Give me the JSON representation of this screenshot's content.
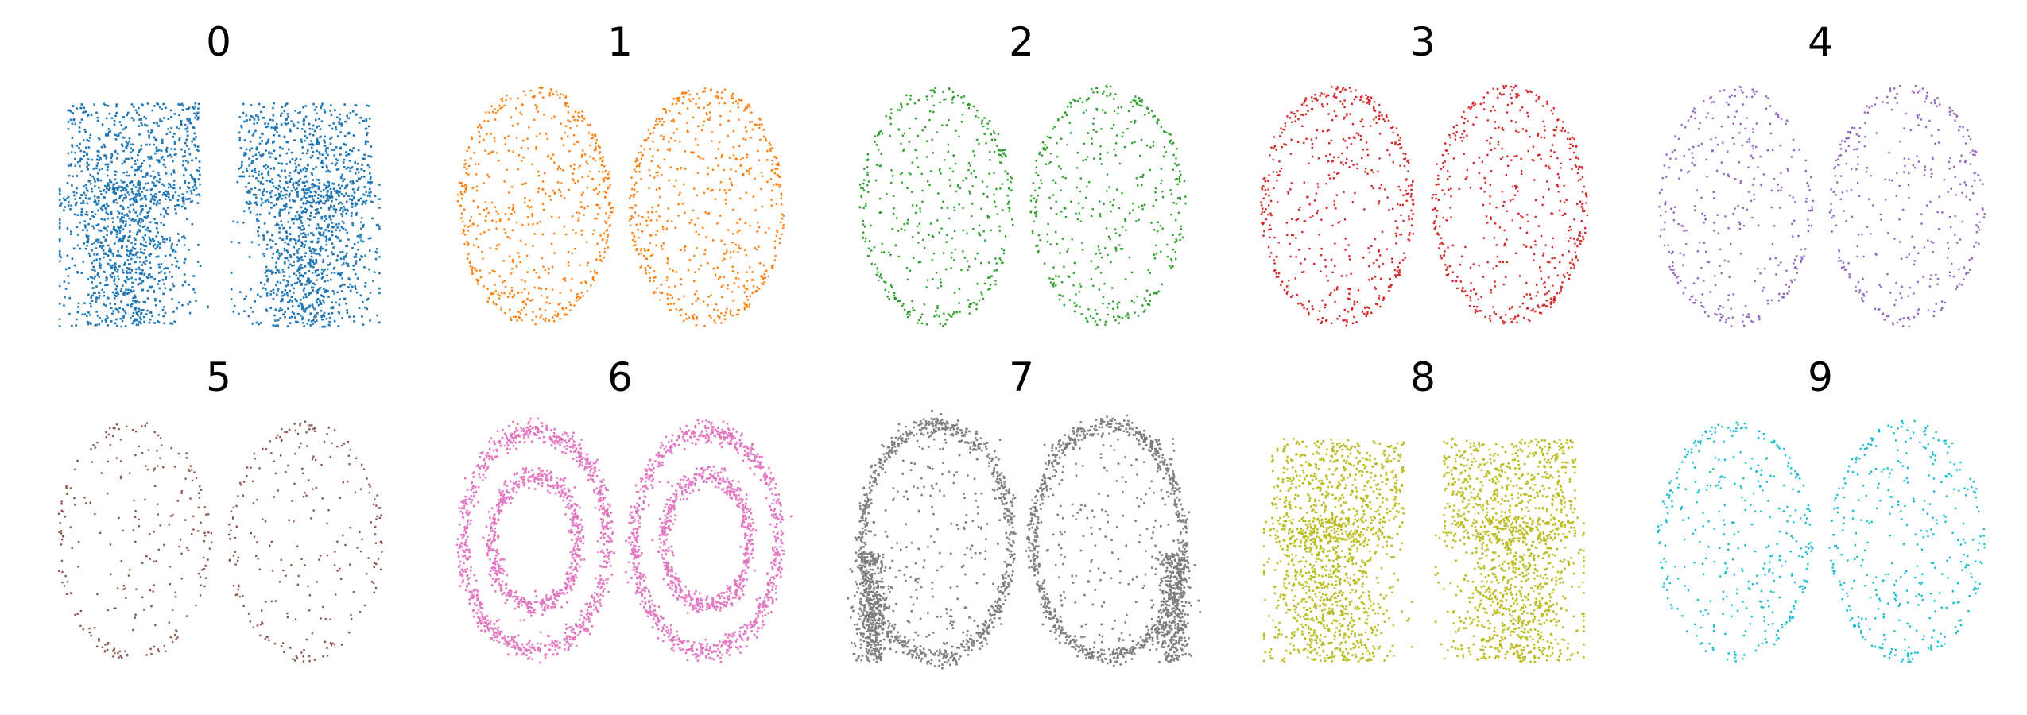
{
  "chart_data": {
    "type": "scatter",
    "layout": "2x5 small multiples",
    "axes": "off",
    "grid": false,
    "legend": "none",
    "panels": [
      {
        "title": "0",
        "color": "#1f77b4",
        "pattern": "dense-blobs",
        "density": 1.0
      },
      {
        "title": "1",
        "color": "#ff7f0e",
        "pattern": "sparse-uniform",
        "density": 0.45
      },
      {
        "title": "2",
        "color": "#2ca02c",
        "pattern": "sparse-uniform",
        "density": 0.33
      },
      {
        "title": "3",
        "color": "#d62728",
        "pattern": "sparse-uniform",
        "density": 0.38
      },
      {
        "title": "4",
        "color": "#9467bd",
        "pattern": "sparse-uniform",
        "density": 0.25
      },
      {
        "title": "5",
        "color": "#8c564b",
        "pattern": "sparse-uniform",
        "density": 0.18
      },
      {
        "title": "6",
        "color": "#e377c2",
        "pattern": "double-ring",
        "density": 1.0
      },
      {
        "title": "7",
        "color": "#7f7f7f",
        "pattern": "outer-rim-center",
        "density": 1.0
      },
      {
        "title": "8",
        "color": "#bcbd22",
        "pattern": "dense-blobs",
        "density": 1.0
      },
      {
        "title": "9",
        "color": "#17becf",
        "pattern": "sparse-uniform",
        "density": 0.27
      }
    ]
  }
}
